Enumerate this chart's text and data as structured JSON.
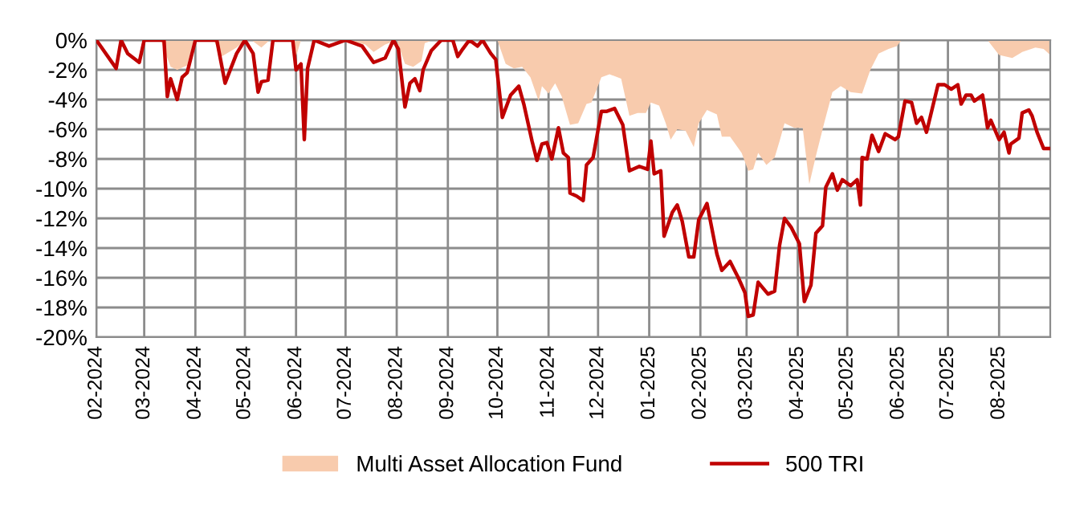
{
  "chart_data": {
    "type": "area",
    "series": [
      {
        "name": "Multi Asset Allocation Fund",
        "color": "#f8cbad",
        "x": [
          "2024-02-01",
          "2024-03-11",
          "2024-03-17",
          "2024-03-21",
          "2024-03-27",
          "2024-03-31",
          "2024-04-12",
          "2024-04-17",
          "2024-04-26",
          "2024-05-01",
          "2024-05-05",
          "2024-05-11",
          "2024-05-16",
          "2024-05-30",
          "2024-06-01",
          "2024-06-04",
          "2024-07-01",
          "2024-07-13",
          "2024-07-18",
          "2024-07-25",
          "2024-08-01",
          "2024-08-06",
          "2024-08-11",
          "2024-08-16",
          "2024-08-18",
          "2024-08-23",
          "2024-10-01",
          "2024-10-06",
          "2024-10-11",
          "2024-10-16",
          "2024-10-21",
          "2024-10-26",
          "2024-10-28",
          "2024-11-01",
          "2024-11-05",
          "2024-11-09",
          "2024-11-14",
          "2024-11-19",
          "2024-11-24",
          "2024-11-27",
          "2024-12-03",
          "2024-12-08",
          "2024-12-15",
          "2024-12-20",
          "2024-12-25",
          "2024-12-30",
          "2025-01-02",
          "2025-01-07",
          "2025-01-11",
          "2025-01-14",
          "2025-01-18",
          "2025-01-23",
          "2025-01-28",
          "2025-01-31",
          "2025-02-05",
          "2025-02-11",
          "2025-02-14",
          "2025-02-19",
          "2025-02-26",
          "2025-03-02",
          "2025-03-05",
          "2025-03-08",
          "2025-03-13",
          "2025-03-18",
          "2025-03-21",
          "2025-03-24",
          "2025-03-30",
          "2025-04-04",
          "2025-04-08",
          "2025-04-12",
          "2025-04-17",
          "2025-04-22",
          "2025-04-27",
          "2025-05-03",
          "2025-05-10",
          "2025-05-15",
          "2025-05-20",
          "2025-05-26",
          "2025-05-31",
          "2025-06-03",
          "2025-07-25",
          "2025-08-01",
          "2025-08-09",
          "2025-08-15",
          "2025-08-23",
          "2025-08-28",
          "2025-09-01"
        ],
        "values": [
          0,
          0,
          -1.8,
          -2.0,
          -1.7,
          0,
          0,
          -1.1,
          -0.5,
          0,
          0,
          -0.5,
          0,
          0,
          -1.1,
          0,
          0,
          -0.3,
          -0.8,
          -0.3,
          0,
          -1.6,
          -1.8,
          -1.4,
          -0.2,
          0,
          0,
          -1.6,
          -1.9,
          -1.8,
          -2.5,
          -4.1,
          -3.1,
          -3.6,
          -2.9,
          -3.8,
          -5.7,
          -5.6,
          -4.3,
          -4.2,
          -2.5,
          -2.3,
          -2.6,
          -5.1,
          -4.9,
          -4.9,
          -4.2,
          -4.4,
          -5.6,
          -6.7,
          -6.0,
          -6.1,
          -7.2,
          -5.6,
          -4.7,
          -5.0,
          -6.5,
          -6.5,
          -7.6,
          -8.8,
          -8.7,
          -7.6,
          -8.4,
          -7.9,
          -6.8,
          -5.6,
          -5.9,
          -5.9,
          -9.7,
          -7.8,
          -5.6,
          -3.5,
          -3.1,
          -3.5,
          -3.6,
          -2.0,
          -0.9,
          -0.6,
          -0.4,
          0,
          0,
          -1.0,
          -1.2,
          -0.8,
          -0.5,
          -0.6,
          -1.0
        ]
      },
      {
        "name": "500 TRI",
        "type": "line",
        "color": "#c00000",
        "x": [
          "2024-02-01",
          "2024-02-13",
          "2024-02-16",
          "2024-02-20",
          "2024-02-27",
          "2024-03-01",
          "2024-03-13",
          "2024-03-15",
          "2024-03-17",
          "2024-03-21",
          "2024-03-24",
          "2024-03-27",
          "2024-04-01",
          "2024-04-14",
          "2024-04-19",
          "2024-04-26",
          "2024-05-01",
          "2024-05-06",
          "2024-05-09",
          "2024-05-11",
          "2024-05-15",
          "2024-05-18",
          "2024-05-30",
          "2024-06-01",
          "2024-06-04",
          "2024-06-06",
          "2024-06-08",
          "2024-06-12",
          "2024-06-21",
          "2024-07-01",
          "2024-07-11",
          "2024-07-18",
          "2024-07-25",
          "2024-07-30",
          "2024-08-02",
          "2024-08-06",
          "2024-08-09",
          "2024-08-12",
          "2024-08-15",
          "2024-08-17",
          "2024-08-22",
          "2024-08-28",
          "2024-09-04",
          "2024-09-07",
          "2024-09-10",
          "2024-09-14",
          "2024-09-19",
          "2024-09-22",
          "2024-09-27",
          "2024-09-30",
          "2024-10-04",
          "2024-10-09",
          "2024-10-14",
          "2024-10-17",
          "2024-10-22",
          "2024-10-25",
          "2024-10-28",
          "2024-10-31",
          "2024-11-03",
          "2024-11-07",
          "2024-11-10",
          "2024-11-13",
          "2024-11-14",
          "2024-11-18",
          "2024-11-22",
          "2024-11-24",
          "2024-11-28",
          "2024-12-03",
          "2024-12-06",
          "2024-12-11",
          "2024-12-16",
          "2024-12-20",
          "2024-12-26",
          "2024-12-31",
          "2025-01-02",
          "2025-01-04",
          "2025-01-08",
          "2025-01-10",
          "2025-01-15",
          "2025-01-18",
          "2025-01-21",
          "2025-01-25",
          "2025-01-28",
          "2025-01-31",
          "2025-02-05",
          "2025-02-11",
          "2025-02-14",
          "2025-02-19",
          "2025-02-24",
          "2025-02-28",
          "2025-03-02",
          "2025-03-05",
          "2025-03-08",
          "2025-03-14",
          "2025-03-18",
          "2025-03-21",
          "2025-03-24",
          "2025-03-28",
          "2025-04-02",
          "2025-04-05",
          "2025-04-09",
          "2025-04-12",
          "2025-04-16",
          "2025-04-18",
          "2025-04-22",
          "2025-04-25",
          "2025-04-28",
          "2025-05-03",
          "2025-05-07",
          "2025-05-09",
          "2025-05-10",
          "2025-05-13",
          "2025-05-16",
          "2025-05-20",
          "2025-05-24",
          "2025-05-30",
          "2025-06-01",
          "2025-06-05",
          "2025-06-09",
          "2025-06-12",
          "2025-06-15",
          "2025-06-18",
          "2025-06-20",
          "2025-06-25",
          "2025-06-29",
          "2025-07-03",
          "2025-07-07",
          "2025-07-09",
          "2025-07-12",
          "2025-07-15",
          "2025-07-17",
          "2025-07-22",
          "2025-07-25",
          "2025-07-27",
          "2025-08-01",
          "2025-08-04",
          "2025-08-07",
          "2025-08-08",
          "2025-08-13",
          "2025-08-15",
          "2025-08-19",
          "2025-08-21",
          "2025-08-24",
          "2025-08-28",
          "2025-09-01"
        ],
        "values": [
          0,
          -1.9,
          0,
          -0.9,
          -1.5,
          0,
          0,
          -3.8,
          -2.6,
          -4.0,
          -2.5,
          -2.2,
          0,
          0,
          -2.9,
          -0.9,
          0,
          -0.9,
          -3.5,
          -2.8,
          -2.7,
          0,
          0,
          -2.0,
          -1.6,
          -6.7,
          -1.9,
          0,
          -0.4,
          0,
          -0.4,
          -1.5,
          -1.2,
          0,
          -0.6,
          -4.5,
          -2.9,
          -2.6,
          -3.4,
          -2.0,
          -0.7,
          0,
          0,
          -1.1,
          -0.6,
          0,
          -0.4,
          0,
          -0.9,
          -1.3,
          -5.2,
          -3.7,
          -3.1,
          -4.3,
          -6.8,
          -8.1,
          -7.0,
          -6.9,
          -8.0,
          -5.9,
          -7.6,
          -7.9,
          -10.3,
          -10.5,
          -10.8,
          -8.4,
          -7.9,
          -4.8,
          -4.8,
          -4.6,
          -5.7,
          -8.8,
          -8.5,
          -8.7,
          -6.8,
          -9.0,
          -8.8,
          -13.2,
          -11.6,
          -11.1,
          -12.2,
          -14.6,
          -14.6,
          -12.1,
          -11.0,
          -14.4,
          -15.5,
          -14.9,
          -16.0,
          -17.0,
          -18.6,
          -18.5,
          -16.3,
          -17.1,
          -16.9,
          -13.8,
          -12.0,
          -12.6,
          -13.7,
          -17.6,
          -16.5,
          -13.0,
          -12.5,
          -9.9,
          -9.0,
          -10.1,
          -9.4,
          -9.8,
          -9.4,
          -11.1,
          -7.9,
          -8.0,
          -6.4,
          -7.5,
          -6.3,
          -6.7,
          -6.5,
          -4.1,
          -4.2,
          -5.6,
          -5.2,
          -6.2,
          -5.3,
          -3.0,
          -3.0,
          -3.3,
          -3.0,
          -4.3,
          -3.7,
          -3.7,
          -4.1,
          -3.7,
          -5.9,
          -5.4,
          -6.7,
          -6.2,
          -7.6,
          -7.0,
          -6.6,
          -4.9,
          -4.7,
          -5.1,
          -6.2,
          -7.3,
          -7.3
        ]
      }
    ],
    "xlim": [
      "2024-02-01",
      "2025-09-01"
    ],
    "xticks": [
      {
        "value": "2024-02-01",
        "label": "02-2024"
      },
      {
        "value": "2024-03-01",
        "label": "03-2024"
      },
      {
        "value": "2024-04-01",
        "label": "04-2024"
      },
      {
        "value": "2024-05-01",
        "label": "05-2024"
      },
      {
        "value": "2024-06-01",
        "label": "06-2024"
      },
      {
        "value": "2024-07-01",
        "label": "07-2024"
      },
      {
        "value": "2024-08-01",
        "label": "08-2024"
      },
      {
        "value": "2024-09-01",
        "label": "09-2024"
      },
      {
        "value": "2024-10-01",
        "label": "10-2024"
      },
      {
        "value": "2024-11-01",
        "label": "11-2024"
      },
      {
        "value": "2024-12-01",
        "label": "12-2024"
      },
      {
        "value": "2025-01-01",
        "label": "01-2025"
      },
      {
        "value": "2025-02-01",
        "label": "02-2025"
      },
      {
        "value": "2025-03-01",
        "label": "03-2025"
      },
      {
        "value": "2025-04-01",
        "label": "04-2025"
      },
      {
        "value": "2025-05-01",
        "label": "05-2025"
      },
      {
        "value": "2025-06-01",
        "label": "06-2025"
      },
      {
        "value": "2025-07-01",
        "label": "07-2025"
      },
      {
        "value": "2025-08-01",
        "label": "08-2025"
      }
    ],
    "ylim": [
      -20,
      0
    ],
    "yticks": [
      {
        "value": 0,
        "label": "0%"
      },
      {
        "value": -2,
        "label": "-2%"
      },
      {
        "value": -4,
        "label": "-4%"
      },
      {
        "value": -6,
        "label": "-6%"
      },
      {
        "value": -8,
        "label": "-8%"
      },
      {
        "value": -10,
        "label": "-10%"
      },
      {
        "value": -12,
        "label": "-12%"
      },
      {
        "value": -14,
        "label": "-14%"
      },
      {
        "value": -16,
        "label": "-16%"
      },
      {
        "value": -18,
        "label": "-18%"
      },
      {
        "value": -20,
        "label": "-20%"
      }
    ],
    "grid": true,
    "legend": "bottom",
    "marker": "none",
    "line_style": "solid"
  }
}
